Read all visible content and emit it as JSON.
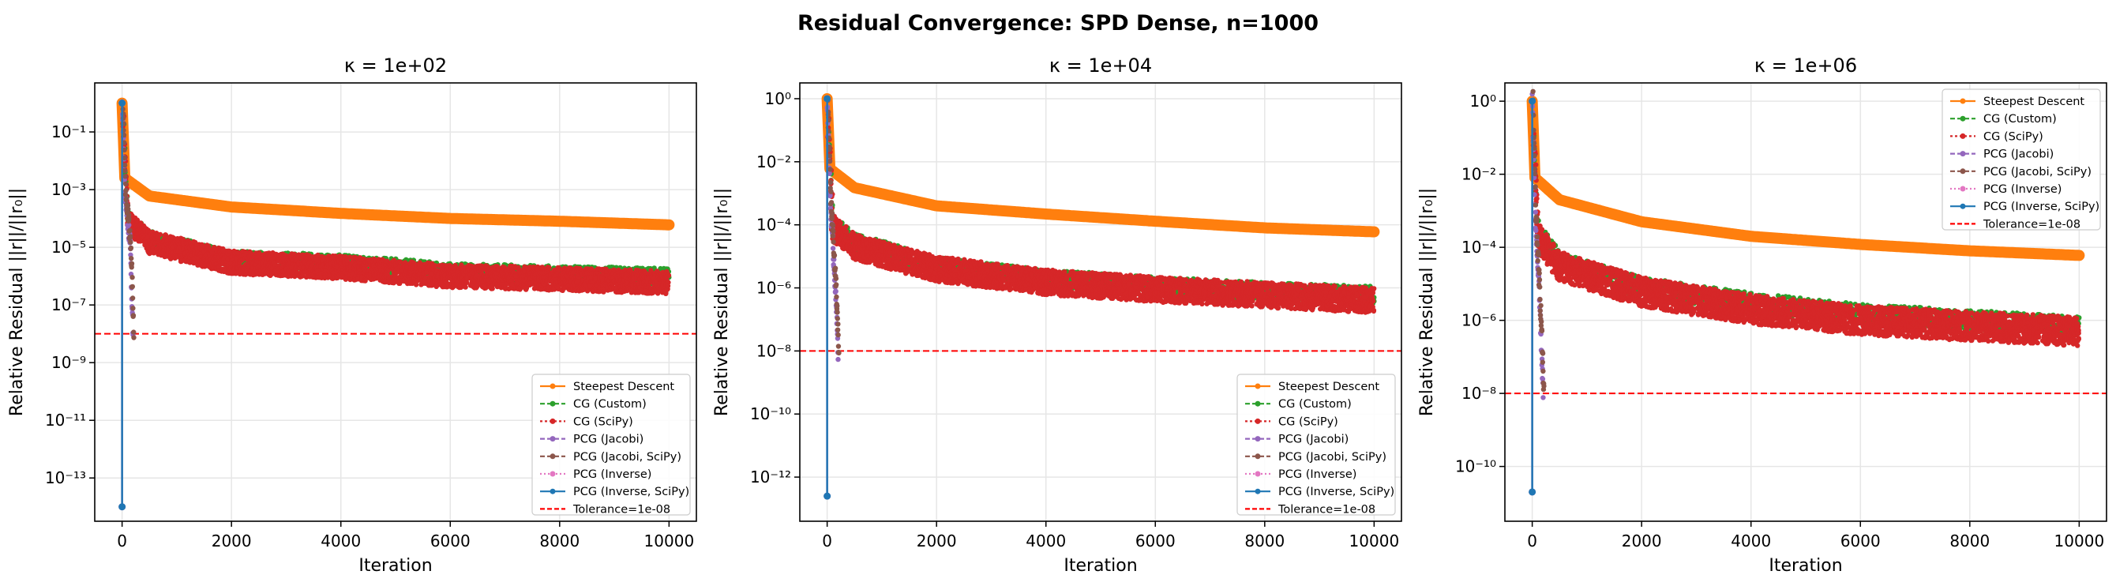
{
  "figure": {
    "suptitle": "Residual Convergence: SPD Dense, n=1000"
  },
  "colors": {
    "steepest": "#ff7f0e",
    "cg_custom": "#2ca02c",
    "cg_scipy": "#d62728",
    "pcg_jacobi": "#9467bd",
    "pcg_jacobi_scipy": "#8c564b",
    "pcg_inverse": "#e377c2",
    "pcg_inverse_scipy": "#1f77b4",
    "tolerance": "#ff0000",
    "grid": "#e6e6e6"
  },
  "chart_data": [
    {
      "type": "line",
      "title": "κ = 1e+02",
      "xlabel": "Iteration",
      "ylabel": "Relative Residual ||r||/||r₀||",
      "yscale": "log",
      "xlim": [
        -500,
        10500
      ],
      "ylim_exp": [
        -14.5,
        0.7
      ],
      "xticks": [
        0,
        2000,
        4000,
        6000,
        8000,
        10000
      ],
      "yticks_exp": [
        -13,
        -11,
        -9,
        -7,
        -5,
        -3,
        -1
      ],
      "grid": true,
      "legend_position": "lower right",
      "series": [
        {
          "name": "Steepest Descent",
          "key": "steepest",
          "points": [
            [
              0,
              1
            ],
            [
              50,
              0.0025
            ],
            [
              500,
              0.0006
            ],
            [
              2000,
              0.00025
            ],
            [
              4000,
              0.00015
            ],
            [
              6000,
              0.0001
            ],
            [
              8000,
              8e-05
            ],
            [
              10000,
              6e-05
            ]
          ]
        },
        {
          "name": "CG (Custom)",
          "key": "cg_custom",
          "points": [
            [
              0,
              1
            ],
            [
              100,
              0.0001
            ],
            [
              500,
              2e-05
            ],
            [
              2000,
              4e-06
            ],
            [
              4000,
              3e-06
            ],
            [
              6000,
              1.5e-06
            ],
            [
              8000,
              1.2e-06
            ],
            [
              10000,
              1e-06
            ]
          ]
        },
        {
          "name": "CG (SciPy)",
          "key": "cg_scipy",
          "points": [
            [
              0,
              1
            ],
            [
              100,
              8e-05
            ],
            [
              500,
              1.5e-05
            ],
            [
              2000,
              3e-06
            ],
            [
              4000,
              2e-06
            ],
            [
              6000,
              1e-06
            ],
            [
              8000,
              8e-07
            ],
            [
              10000,
              6e-07
            ]
          ]
        },
        {
          "name": "PCG (Jacobi)",
          "key": "pcg_jacobi",
          "points": [
            [
              0,
              1
            ],
            [
              50,
              0.001
            ],
            [
              150,
              1e-05
            ],
            [
              200,
              1e-08
            ]
          ]
        },
        {
          "name": "PCG (Jacobi, SciPy)",
          "key": "pcg_jacobi_scipy",
          "points": [
            [
              0,
              1
            ],
            [
              50,
              0.001
            ],
            [
              150,
              1e-05
            ],
            [
              200,
              1e-08
            ]
          ]
        },
        {
          "name": "PCG (Inverse)",
          "key": "pcg_inverse",
          "points": [
            [
              0,
              1
            ],
            [
              1,
              1e-14
            ]
          ]
        },
        {
          "name": "PCG (Inverse, SciPy)",
          "key": "pcg_inverse_scipy",
          "points": [
            [
              0,
              1
            ],
            [
              1,
              1e-14
            ]
          ]
        }
      ],
      "tolerance": {
        "name": "Tolerance=1e-08",
        "value": 1e-08
      }
    },
    {
      "type": "line",
      "title": "κ = 1e+04",
      "xlabel": "Iteration",
      "ylabel": "Relative Residual ||r||/||r₀||",
      "yscale": "log",
      "xlim": [
        -500,
        10500
      ],
      "ylim_exp": [
        -13.4,
        0.5
      ],
      "xticks": [
        0,
        2000,
        4000,
        6000,
        8000,
        10000
      ],
      "yticks_exp": [
        -12,
        -10,
        -8,
        -6,
        -4,
        -2,
        0
      ],
      "grid": true,
      "legend_position": "lower right",
      "series": [
        {
          "name": "Steepest Descent",
          "key": "steepest",
          "points": [
            [
              0,
              1
            ],
            [
              50,
              0.006
            ],
            [
              500,
              0.0015
            ],
            [
              2000,
              0.0004
            ],
            [
              4000,
              0.00022
            ],
            [
              6000,
              0.00013
            ],
            [
              8000,
              8e-05
            ],
            [
              10000,
              6e-05
            ]
          ]
        },
        {
          "name": "CG (Custom)",
          "key": "cg_custom",
          "points": [
            [
              0,
              1
            ],
            [
              100,
              0.0001
            ],
            [
              500,
              3e-05
            ],
            [
              2000,
              5e-06
            ],
            [
              4000,
              2e-06
            ],
            [
              6000,
              1.2e-06
            ],
            [
              8000,
              8e-07
            ],
            [
              10000,
              6e-07
            ]
          ]
        },
        {
          "name": "CG (SciPy)",
          "key": "cg_scipy",
          "points": [
            [
              0,
              1
            ],
            [
              100,
              8e-05
            ],
            [
              500,
              2e-05
            ],
            [
              2000,
              4e-06
            ],
            [
              4000,
              1.5e-06
            ],
            [
              6000,
              9e-07
            ],
            [
              8000,
              6e-07
            ],
            [
              10000,
              4e-07
            ]
          ]
        },
        {
          "name": "PCG (Jacobi)",
          "key": "pcg_jacobi",
          "points": [
            [
              0,
              1
            ],
            [
              50,
              0.001
            ],
            [
              150,
              1e-06
            ],
            [
              200,
              1e-08
            ]
          ]
        },
        {
          "name": "PCG (Jacobi, SciPy)",
          "key": "pcg_jacobi_scipy",
          "points": [
            [
              0,
              1
            ],
            [
              50,
              0.001
            ],
            [
              150,
              1e-06
            ],
            [
              200,
              1e-08
            ]
          ]
        },
        {
          "name": "PCG (Inverse)",
          "key": "pcg_inverse",
          "points": [
            [
              0,
              1
            ],
            [
              1,
              2.5e-13
            ]
          ]
        },
        {
          "name": "PCG (Inverse, SciPy)",
          "key": "pcg_inverse_scipy",
          "points": [
            [
              0,
              1
            ],
            [
              1,
              2.5e-13
            ]
          ]
        }
      ],
      "tolerance": {
        "name": "Tolerance=1e-08",
        "value": 1e-08
      }
    },
    {
      "type": "line",
      "title": "κ = 1e+06",
      "xlabel": "Iteration",
      "ylabel": "Relative Residual ||r||/||r₀||",
      "yscale": "log",
      "xlim": [
        -500,
        10500
      ],
      "ylim_exp": [
        -11.5,
        0.5
      ],
      "xticks": [
        0,
        2000,
        4000,
        6000,
        8000,
        10000
      ],
      "yticks_exp": [
        -10,
        -8,
        -6,
        -4,
        -2,
        0
      ],
      "grid": true,
      "legend_position": "upper right",
      "series": [
        {
          "name": "Steepest Descent",
          "key": "steepest",
          "points": [
            [
              0,
              1
            ],
            [
              50,
              0.008
            ],
            [
              500,
              0.002
            ],
            [
              2000,
              0.0005
            ],
            [
              4000,
              0.0002
            ],
            [
              6000,
              0.00012
            ],
            [
              8000,
              8e-05
            ],
            [
              10000,
              6e-05
            ]
          ]
        },
        {
          "name": "CG (Custom)",
          "key": "cg_custom",
          "points": [
            [
              0,
              1
            ],
            [
              100,
              0.0003
            ],
            [
              500,
              4e-05
            ],
            [
              2000,
              8e-06
            ],
            [
              4000,
              3e-06
            ],
            [
              6000,
              1.5e-06
            ],
            [
              8000,
              1e-06
            ],
            [
              10000,
              7e-07
            ]
          ]
        },
        {
          "name": "CG (SciPy)",
          "key": "cg_scipy",
          "points": [
            [
              0,
              1
            ],
            [
              100,
              0.0002
            ],
            [
              500,
              3e-05
            ],
            [
              2000,
              6e-06
            ],
            [
              4000,
              2e-06
            ],
            [
              6000,
              1e-06
            ],
            [
              8000,
              7e-07
            ],
            [
              10000,
              5e-07
            ]
          ]
        },
        {
          "name": "PCG (Jacobi)",
          "key": "pcg_jacobi",
          "points": [
            [
              0,
              1
            ],
            [
              50,
              0.001
            ],
            [
              150,
              1e-06
            ],
            [
              200,
              1e-08
            ]
          ]
        },
        {
          "name": "PCG (Jacobi, SciPy)",
          "key": "pcg_jacobi_scipy",
          "points": [
            [
              0,
              1
            ],
            [
              50,
              0.001
            ],
            [
              150,
              1e-06
            ],
            [
              200,
              1e-08
            ]
          ]
        },
        {
          "name": "PCG (Inverse)",
          "key": "pcg_inverse",
          "points": [
            [
              0,
              1
            ],
            [
              1,
              2e-11
            ]
          ]
        },
        {
          "name": "PCG (Inverse, SciPy)",
          "key": "pcg_inverse_scipy",
          "points": [
            [
              0,
              1
            ],
            [
              1,
              2e-11
            ]
          ]
        }
      ],
      "tolerance": {
        "name": "Tolerance=1e-08",
        "value": 1e-08
      }
    }
  ]
}
